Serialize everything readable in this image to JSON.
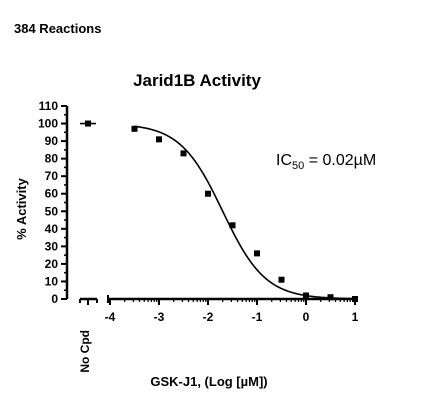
{
  "page": {
    "header": "384 Reactions"
  },
  "chart_data": {
    "type": "scatter",
    "title": "Jarid1B Activity",
    "xlabel": "GSK-J1, (Log [µM])",
    "ylabel": "% Activity",
    "annotation": {
      "prefix": "IC",
      "subscript": "50",
      "suffix": " = 0.02µM"
    },
    "no_cpd_label": "No Cpd",
    "no_cpd_value": 100,
    "xlim": [
      -4,
      1
    ],
    "ylim": [
      0,
      110
    ],
    "x_ticks": [
      -4,
      -3,
      -2,
      -1,
      0,
      1
    ],
    "x_tick_labels": [
      "-4",
      "-3",
      "-2",
      "-1",
      "0",
      "1"
    ],
    "y_ticks": [
      0,
      10,
      20,
      30,
      40,
      50,
      60,
      70,
      80,
      90,
      100,
      110
    ],
    "y_tick_labels": [
      "0",
      "10",
      "20",
      "30",
      "40",
      "50",
      "60",
      "70",
      "80",
      "90",
      "100",
      "110"
    ],
    "series": [
      {
        "x": [
          -3.5,
          -3.0,
          -2.5,
          -2.0,
          -1.5,
          -1.0,
          -0.5,
          0.0,
          0.5,
          1.0
        ],
        "y": [
          97,
          91,
          83,
          60,
          42,
          26,
          11,
          2,
          1,
          0
        ]
      }
    ],
    "fit": {
      "type": "sigmoidal dose-response",
      "top": 100,
      "bottom": 0,
      "log_ic50": -1.7,
      "hill_slope": 1
    }
  }
}
